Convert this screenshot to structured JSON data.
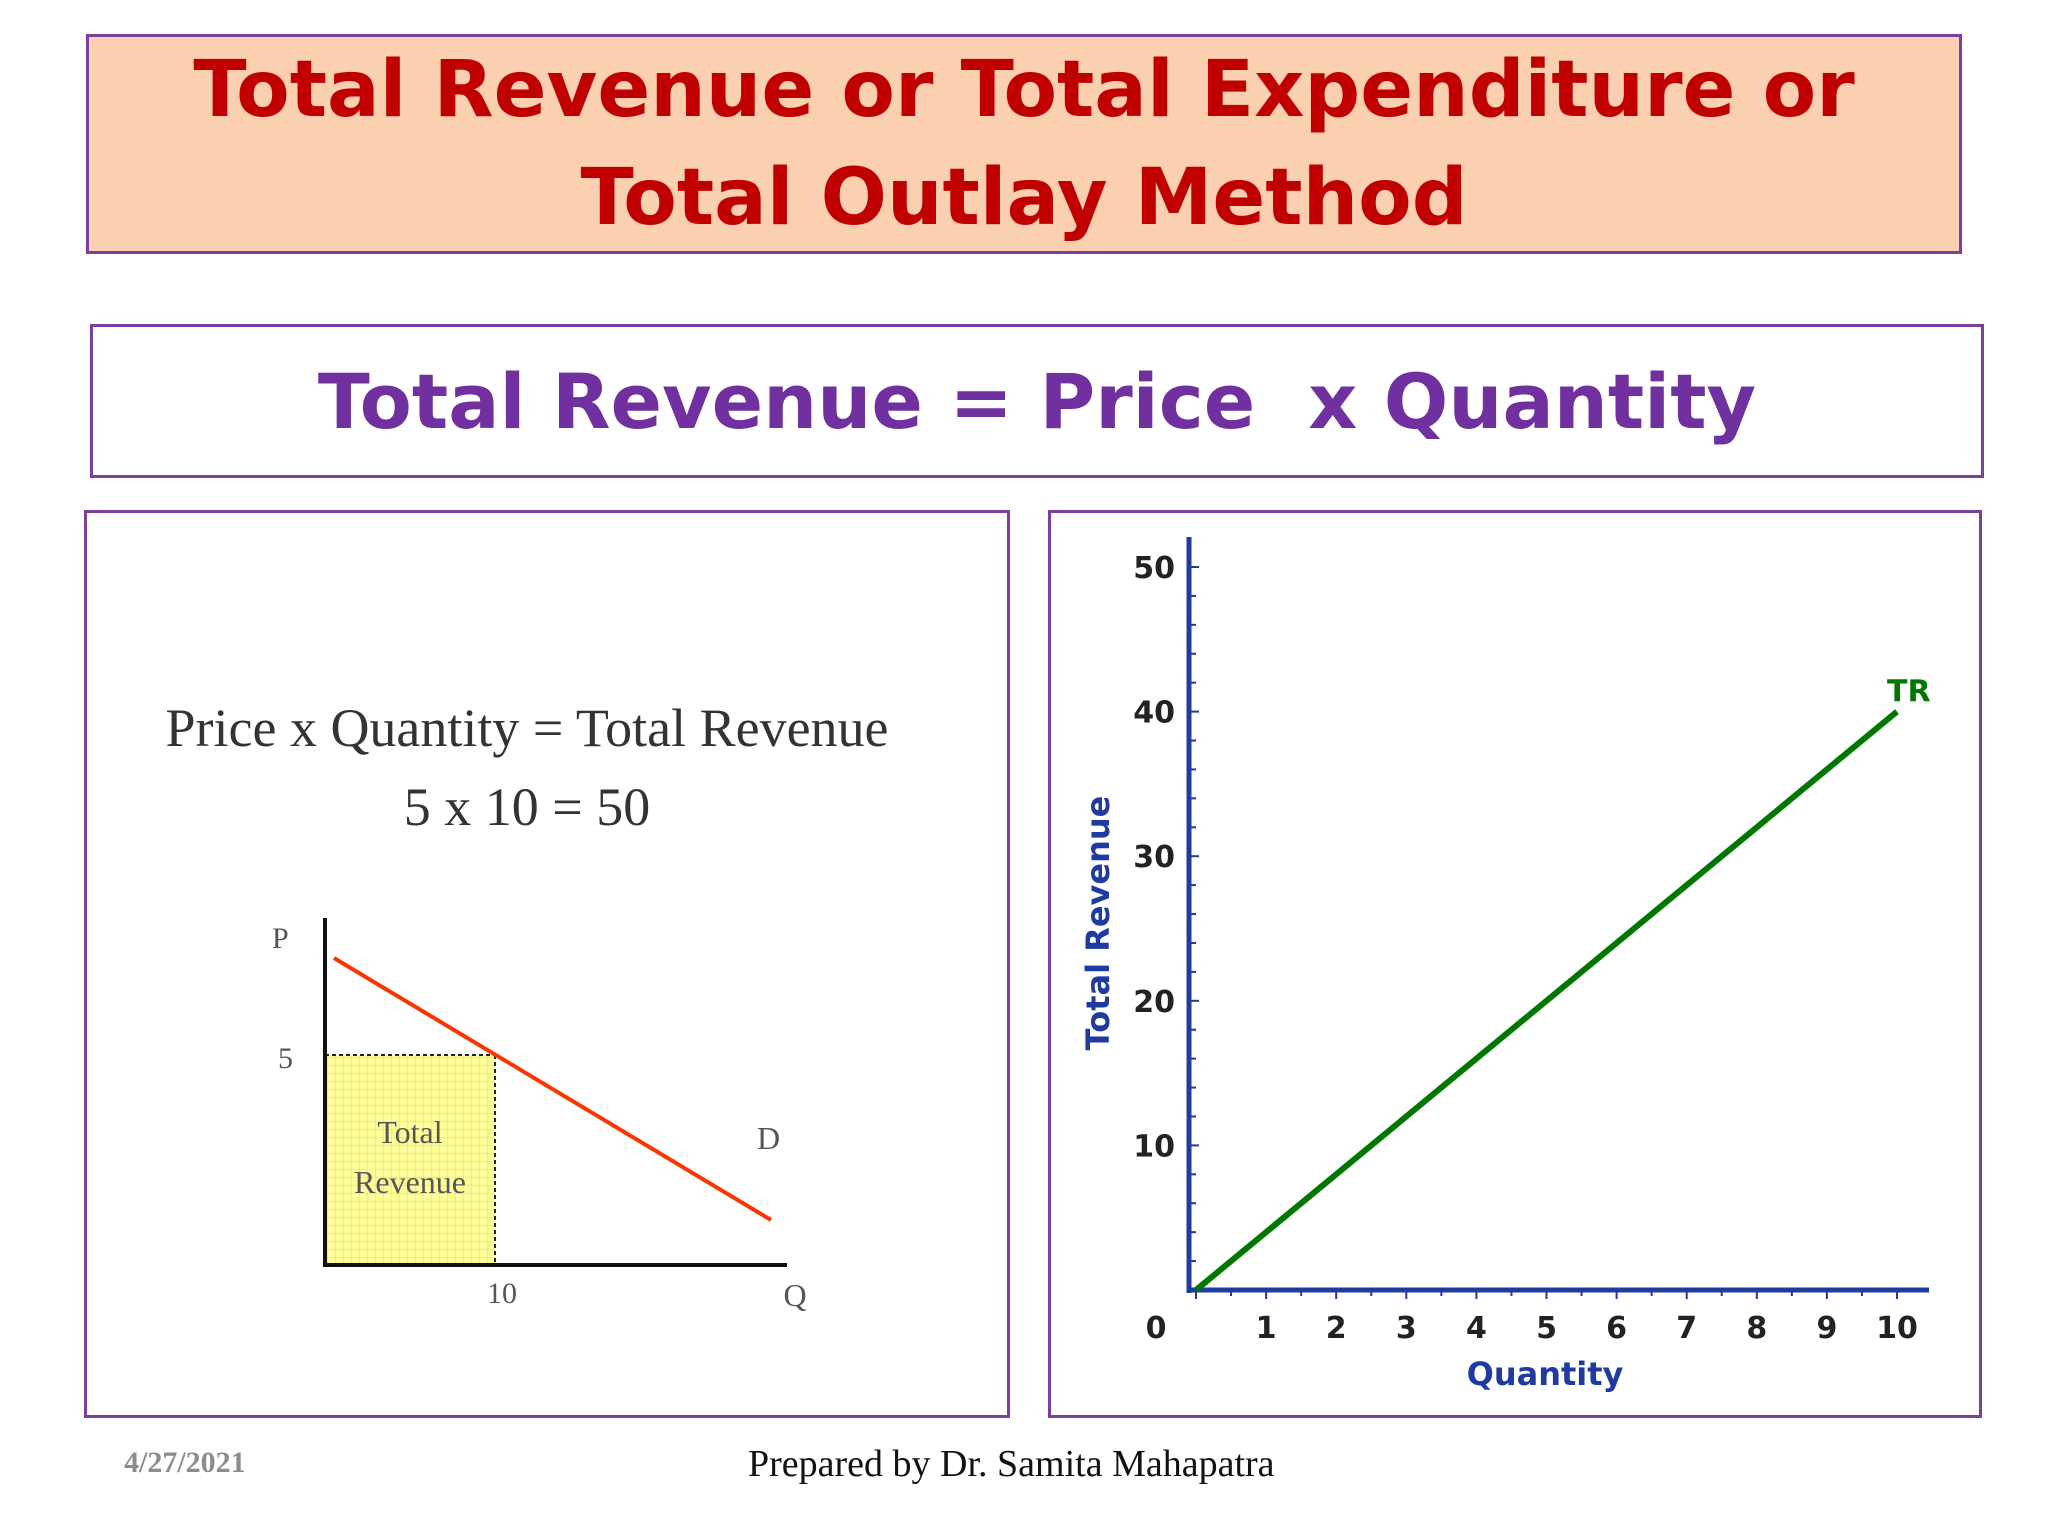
{
  "slide": {
    "title": "Total Revenue or Total Expenditure or Total Outlay Method",
    "formula": "Total Revenue = Price  x Quantity"
  },
  "left_figure": {
    "heading_line1": "Price x Quantity = Total Revenue",
    "heading_line2": "5 x 10 = 50",
    "p_axis_label": "P",
    "q_axis_label": "Q",
    "price_tick": "5",
    "quantity_tick": "10",
    "area_label_line1": "Total",
    "area_label_line2": "Revenue",
    "demand_label": "D",
    "colors": {
      "demand": "#ff3300",
      "area_fill": "#ffff99",
      "area_grid": "#d8d87a"
    }
  },
  "chart_data": {
    "type": "line",
    "xlabel": "Quantity",
    "ylabel": "Total Revenue",
    "xlim": [
      0,
      10
    ],
    "ylim": [
      0,
      50
    ],
    "xticks": [
      "0",
      "1",
      "2",
      "3",
      "4",
      "5",
      "6",
      "7",
      "8",
      "9",
      "10"
    ],
    "yticks": [
      "10",
      "20",
      "30",
      "40",
      "50"
    ],
    "series": [
      {
        "name": "TR",
        "x": [
          0,
          10
        ],
        "y": [
          0,
          40
        ],
        "color": "#007700"
      }
    ],
    "colors": {
      "axis_label": "#1f3aa0"
    }
  },
  "footer": {
    "date": "4/27/2021",
    "credit": "Prepared by Dr. Samita Mahapatra"
  }
}
